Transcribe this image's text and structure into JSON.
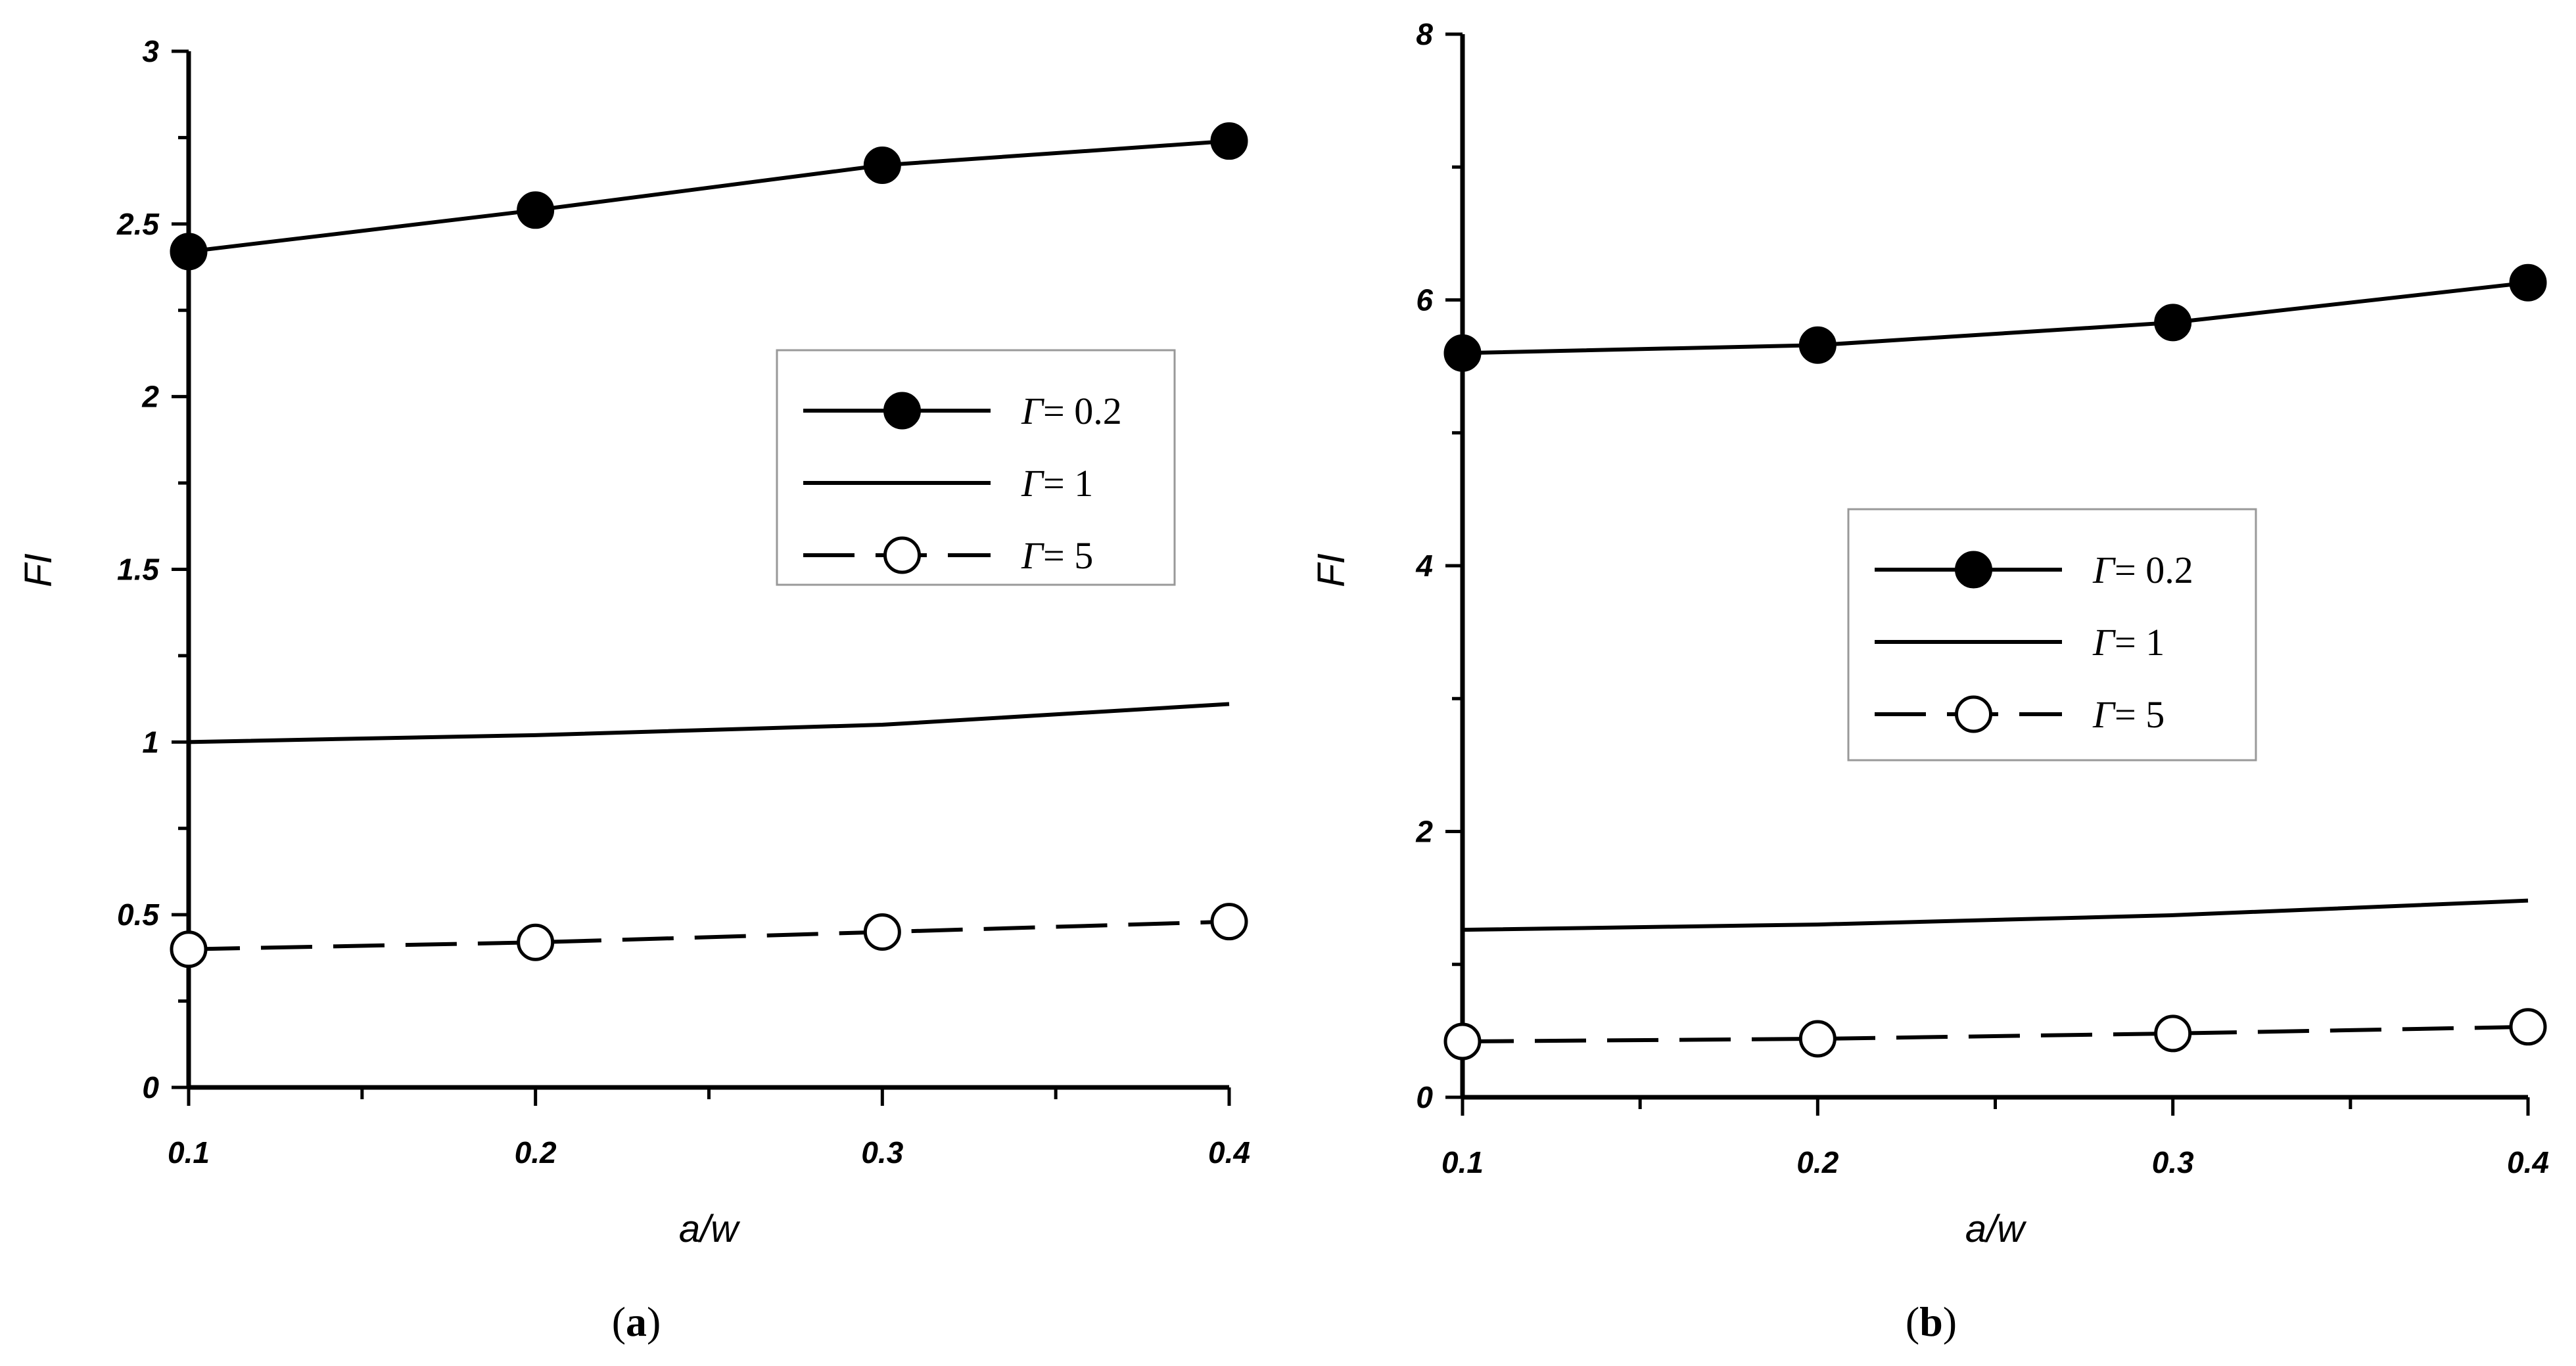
{
  "chart_data": [
    {
      "type": "line",
      "panel_label": "a",
      "xlabel": "a/w",
      "ylabel": "FI",
      "x": [
        0.1,
        0.2,
        0.3,
        0.4
      ],
      "x_ticks": [
        "0.1",
        "0.2",
        "0.3",
        "0.4"
      ],
      "y_ticks": [
        "0",
        "0.5",
        "1",
        "1.5",
        "2",
        "2.5",
        "3"
      ],
      "xlim": [
        0.1,
        0.4
      ],
      "ylim": [
        0,
        3
      ],
      "grid": false,
      "legend_position": "top-right",
      "series": [
        {
          "name": "Γ= 0.2",
          "name_symbol": "Γ",
          "name_value": "= 0.2",
          "style": "solid",
          "marker": "filled-circle",
          "values": [
            2.42,
            2.54,
            2.67,
            2.74
          ]
        },
        {
          "name": "Γ= 1",
          "name_symbol": "Γ",
          "name_value": "= 1",
          "style": "solid",
          "marker": "none",
          "values": [
            1.0,
            1.02,
            1.05,
            1.11
          ]
        },
        {
          "name": "Γ= 5",
          "name_symbol": "Γ",
          "name_value": "= 5",
          "style": "dashed",
          "marker": "open-circle",
          "values": [
            0.4,
            0.42,
            0.45,
            0.48
          ]
        }
      ]
    },
    {
      "type": "line",
      "panel_label": "b",
      "xlabel": "a/w",
      "ylabel": "FI",
      "x": [
        0.1,
        0.2,
        0.3,
        0.4
      ],
      "x_ticks": [
        "0.1",
        "0.2",
        "0.3",
        "0.4"
      ],
      "y_ticks": [
        "0",
        "2",
        "4",
        "6",
        "8"
      ],
      "xlim": [
        0.1,
        0.4
      ],
      "ylim": [
        0,
        8
      ],
      "grid": false,
      "legend_position": "center-right",
      "series": [
        {
          "name": "Γ= 0.2",
          "name_symbol": "Γ",
          "name_value": "= 0.2",
          "style": "solid",
          "marker": "filled-circle",
          "values": [
            5.6,
            5.66,
            5.83,
            6.13
          ]
        },
        {
          "name": "Γ= 1",
          "name_symbol": "Γ",
          "name_value": "= 1",
          "style": "solid",
          "marker": "none",
          "values": [
            1.26,
            1.3,
            1.37,
            1.48
          ]
        },
        {
          "name": "Γ= 5",
          "name_symbol": "Γ",
          "name_value": "= 5",
          "style": "dashed",
          "marker": "open-circle",
          "values": [
            0.42,
            0.44,
            0.48,
            0.53
          ]
        }
      ]
    }
  ]
}
